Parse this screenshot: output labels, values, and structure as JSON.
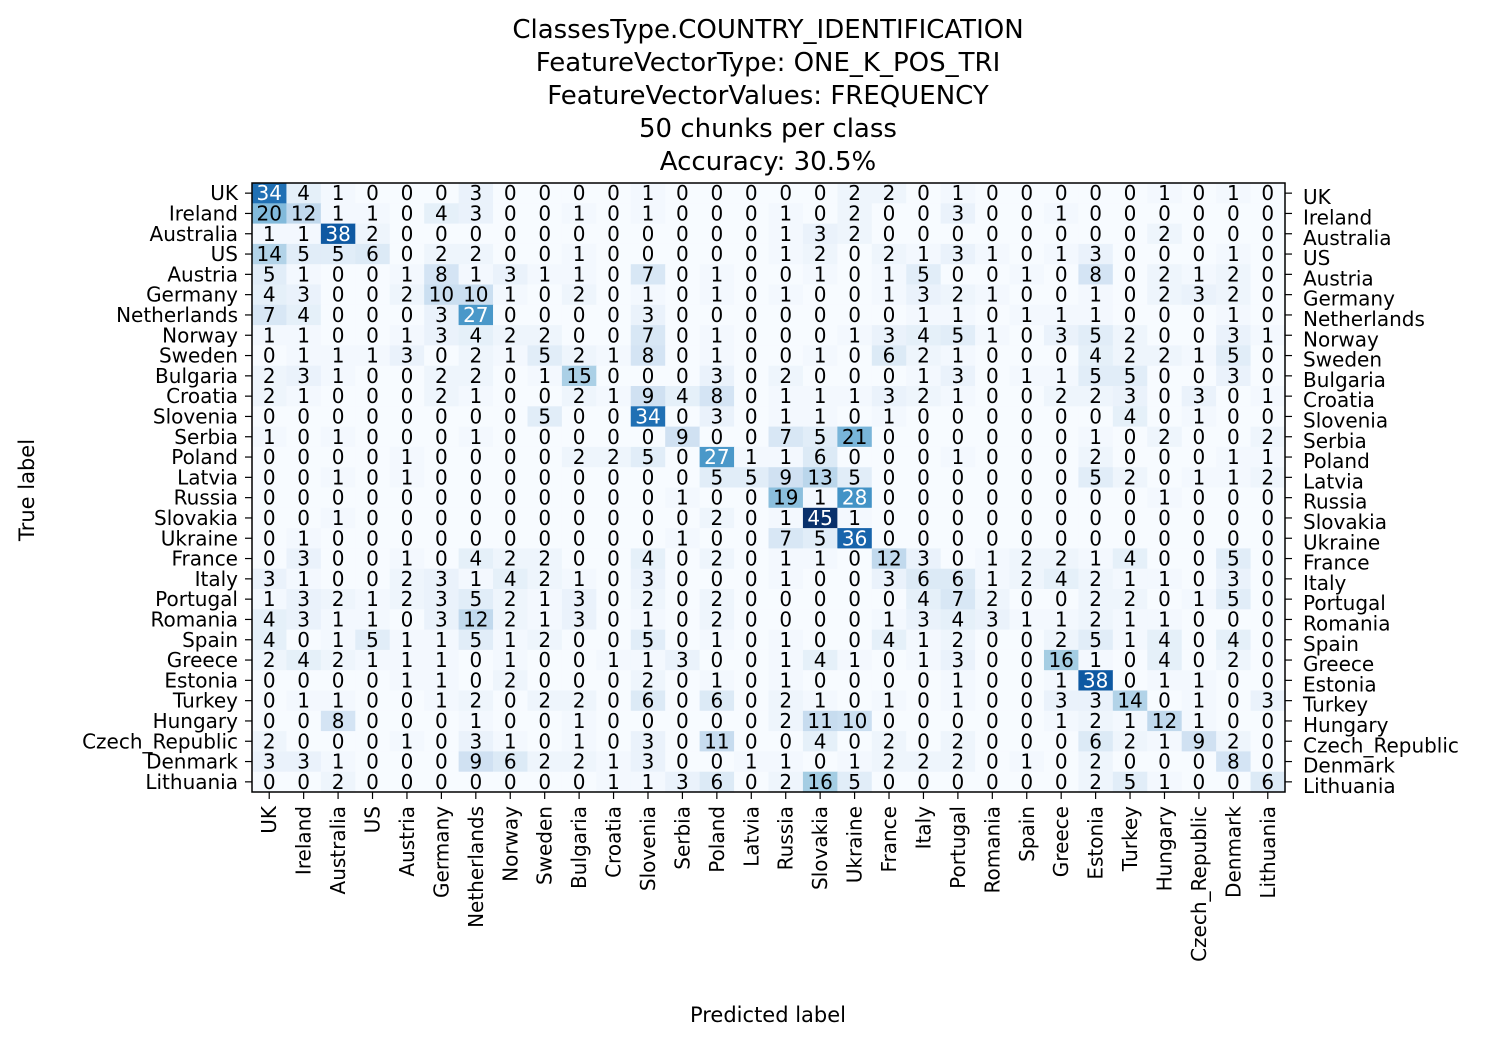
{
  "chart_data": {
    "type": "heatmap",
    "title_lines": [
      "ClassesType.COUNTRY_IDENTIFICATION",
      "FeatureVectorType: ONE_K_POS_TRI",
      "FeatureVectorValues: FREQUENCY",
      "50 chunks per class",
      "Accuracy: 30.5%"
    ],
    "xlabel": "Predicted label",
    "ylabel": "True label",
    "labels": [
      "UK",
      "Ireland",
      "Australia",
      "US",
      "Austria",
      "Germany",
      "Netherlands",
      "Norway",
      "Sweden",
      "Bulgaria",
      "Croatia",
      "Slovenia",
      "Serbia",
      "Poland",
      "Latvia",
      "Russia",
      "Slovakia",
      "Ukraine",
      "France",
      "Italy",
      "Portugal",
      "Romania",
      "Spain",
      "Greece",
      "Estonia",
      "Turkey",
      "Hungary",
      "Czech_Republic",
      "Denmark",
      "Lithuania"
    ],
    "matrix": [
      [
        34,
        4,
        1,
        0,
        0,
        0,
        3,
        0,
        0,
        0,
        0,
        1,
        0,
        0,
        0,
        0,
        0,
        2,
        2,
        0,
        1,
        0,
        0,
        0,
        0,
        0,
        1,
        0,
        1,
        0
      ],
      [
        20,
        12,
        1,
        1,
        0,
        4,
        3,
        0,
        0,
        1,
        0,
        1,
        0,
        0,
        0,
        1,
        0,
        2,
        0,
        0,
        3,
        0,
        0,
        1,
        0,
        0,
        0,
        0,
        0,
        0
      ],
      [
        1,
        1,
        38,
        2,
        0,
        0,
        0,
        0,
        0,
        0,
        0,
        0,
        0,
        0,
        0,
        1,
        3,
        2,
        0,
        0,
        0,
        0,
        0,
        0,
        0,
        0,
        2,
        0,
        0,
        0
      ],
      [
        14,
        5,
        5,
        6,
        0,
        2,
        2,
        0,
        0,
        1,
        0,
        0,
        0,
        0,
        0,
        1,
        2,
        0,
        2,
        1,
        3,
        1,
        0,
        1,
        3,
        0,
        0,
        0,
        1,
        0
      ],
      [
        5,
        1,
        0,
        0,
        1,
        8,
        1,
        3,
        1,
        1,
        0,
        7,
        0,
        1,
        0,
        0,
        1,
        0,
        1,
        5,
        0,
        0,
        1,
        0,
        8,
        0,
        2,
        1,
        2,
        0
      ],
      [
        4,
        3,
        0,
        0,
        2,
        10,
        10,
        1,
        0,
        2,
        0,
        1,
        0,
        1,
        0,
        1,
        0,
        0,
        1,
        3,
        2,
        1,
        0,
        0,
        1,
        0,
        2,
        3,
        2,
        0
      ],
      [
        7,
        4,
        0,
        0,
        0,
        3,
        27,
        0,
        0,
        0,
        0,
        3,
        0,
        0,
        0,
        0,
        0,
        0,
        0,
        1,
        1,
        0,
        1,
        1,
        1,
        0,
        0,
        0,
        1,
        0
      ],
      [
        1,
        1,
        0,
        0,
        1,
        3,
        4,
        2,
        2,
        0,
        0,
        7,
        0,
        1,
        0,
        0,
        0,
        1,
        3,
        4,
        5,
        1,
        0,
        3,
        5,
        2,
        0,
        0,
        3,
        1
      ],
      [
        0,
        1,
        1,
        1,
        3,
        0,
        2,
        1,
        5,
        2,
        1,
        8,
        0,
        1,
        0,
        0,
        1,
        0,
        6,
        2,
        1,
        0,
        0,
        0,
        4,
        2,
        2,
        1,
        5,
        0
      ],
      [
        2,
        3,
        1,
        0,
        0,
        2,
        2,
        0,
        1,
        15,
        0,
        0,
        0,
        3,
        0,
        2,
        0,
        0,
        0,
        1,
        3,
        0,
        1,
        1,
        5,
        5,
        0,
        0,
        3,
        0
      ],
      [
        2,
        1,
        0,
        0,
        0,
        2,
        1,
        0,
        0,
        2,
        1,
        9,
        4,
        8,
        0,
        1,
        1,
        1,
        3,
        2,
        1,
        0,
        0,
        2,
        2,
        3,
        0,
        3,
        0,
        1
      ],
      [
        0,
        0,
        0,
        0,
        0,
        0,
        0,
        0,
        5,
        0,
        0,
        34,
        0,
        3,
        0,
        1,
        1,
        0,
        1,
        0,
        0,
        0,
        0,
        0,
        0,
        4,
        0,
        1,
        0,
        0
      ],
      [
        1,
        0,
        1,
        0,
        0,
        0,
        1,
        0,
        0,
        0,
        0,
        0,
        9,
        0,
        0,
        7,
        5,
        21,
        0,
        0,
        0,
        0,
        0,
        0,
        1,
        0,
        2,
        0,
        0,
        2
      ],
      [
        0,
        0,
        0,
        0,
        1,
        0,
        0,
        0,
        0,
        2,
        2,
        5,
        0,
        27,
        1,
        1,
        6,
        0,
        0,
        0,
        1,
        0,
        0,
        0,
        2,
        0,
        0,
        0,
        1,
        1
      ],
      [
        0,
        0,
        1,
        0,
        1,
        0,
        0,
        0,
        0,
        0,
        0,
        0,
        0,
        5,
        5,
        9,
        13,
        5,
        0,
        0,
        0,
        0,
        0,
        0,
        5,
        2,
        0,
        1,
        1,
        2
      ],
      [
        0,
        0,
        0,
        0,
        0,
        0,
        0,
        0,
        0,
        0,
        0,
        0,
        1,
        0,
        0,
        19,
        1,
        28,
        0,
        0,
        0,
        0,
        0,
        0,
        0,
        0,
        1,
        0,
        0,
        0
      ],
      [
        0,
        0,
        1,
        0,
        0,
        0,
        0,
        0,
        0,
        0,
        0,
        0,
        0,
        2,
        0,
        1,
        45,
        1,
        0,
        0,
        0,
        0,
        0,
        0,
        0,
        0,
        0,
        0,
        0,
        0
      ],
      [
        0,
        1,
        0,
        0,
        0,
        0,
        0,
        0,
        0,
        0,
        0,
        0,
        1,
        0,
        0,
        7,
        5,
        36,
        0,
        0,
        0,
        0,
        0,
        0,
        0,
        0,
        0,
        0,
        0,
        0
      ],
      [
        0,
        3,
        0,
        0,
        1,
        0,
        4,
        2,
        2,
        0,
        0,
        4,
        0,
        2,
        0,
        1,
        1,
        0,
        12,
        3,
        0,
        1,
        2,
        2,
        1,
        4,
        0,
        0,
        5,
        0
      ],
      [
        3,
        1,
        0,
        0,
        2,
        3,
        1,
        4,
        2,
        1,
        0,
        3,
        0,
        0,
        0,
        1,
        0,
        0,
        3,
        6,
        6,
        1,
        2,
        4,
        2,
        1,
        1,
        0,
        3,
        0
      ],
      [
        1,
        3,
        2,
        1,
        2,
        3,
        5,
        2,
        1,
        3,
        0,
        2,
        0,
        2,
        0,
        0,
        0,
        0,
        0,
        4,
        7,
        2,
        0,
        0,
        2,
        2,
        0,
        1,
        5,
        0
      ],
      [
        4,
        3,
        1,
        1,
        0,
        3,
        12,
        2,
        1,
        3,
        0,
        1,
        0,
        2,
        0,
        0,
        0,
        0,
        1,
        3,
        4,
        3,
        1,
        1,
        2,
        1,
        1,
        0,
        0,
        0
      ],
      [
        4,
        0,
        1,
        5,
        1,
        1,
        5,
        1,
        2,
        0,
        0,
        5,
        0,
        1,
        0,
        1,
        0,
        0,
        4,
        1,
        2,
        0,
        0,
        2,
        5,
        1,
        4,
        0,
        4,
        0
      ],
      [
        2,
        4,
        2,
        1,
        1,
        1,
        0,
        1,
        0,
        0,
        1,
        1,
        3,
        0,
        0,
        1,
        4,
        1,
        0,
        1,
        3,
        0,
        0,
        16,
        1,
        0,
        4,
        0,
        2,
        0
      ],
      [
        0,
        0,
        0,
        0,
        1,
        1,
        0,
        2,
        0,
        0,
        0,
        2,
        0,
        1,
        0,
        1,
        0,
        0,
        0,
        0,
        1,
        0,
        0,
        1,
        38,
        0,
        1,
        1,
        0,
        0
      ],
      [
        0,
        1,
        1,
        0,
        0,
        1,
        2,
        0,
        2,
        2,
        0,
        6,
        0,
        6,
        0,
        2,
        1,
        0,
        1,
        0,
        1,
        0,
        0,
        3,
        3,
        14,
        0,
        1,
        0,
        3
      ],
      [
        0,
        0,
        8,
        0,
        0,
        0,
        1,
        0,
        0,
        1,
        0,
        0,
        0,
        0,
        0,
        2,
        11,
        10,
        0,
        0,
        0,
        0,
        0,
        1,
        2,
        1,
        12,
        1,
        0,
        0
      ],
      [
        2,
        0,
        0,
        0,
        1,
        0,
        3,
        1,
        0,
        1,
        0,
        3,
        0,
        11,
        0,
        0,
        4,
        0,
        2,
        0,
        2,
        0,
        0,
        0,
        6,
        2,
        1,
        9,
        2,
        0
      ],
      [
        3,
        3,
        1,
        0,
        0,
        0,
        9,
        6,
        2,
        2,
        1,
        3,
        0,
        0,
        1,
        1,
        0,
        1,
        2,
        2,
        2,
        0,
        1,
        0,
        2,
        0,
        0,
        0,
        8,
        0
      ],
      [
        0,
        0,
        2,
        0,
        0,
        0,
        0,
        0,
        0,
        0,
        1,
        1,
        3,
        6,
        0,
        2,
        16,
        5,
        0,
        0,
        0,
        0,
        0,
        0,
        2,
        5,
        1,
        0,
        0,
        6
      ]
    ],
    "vmin": 0,
    "vmax": 45,
    "colormap": "Blues",
    "grid": false
  }
}
